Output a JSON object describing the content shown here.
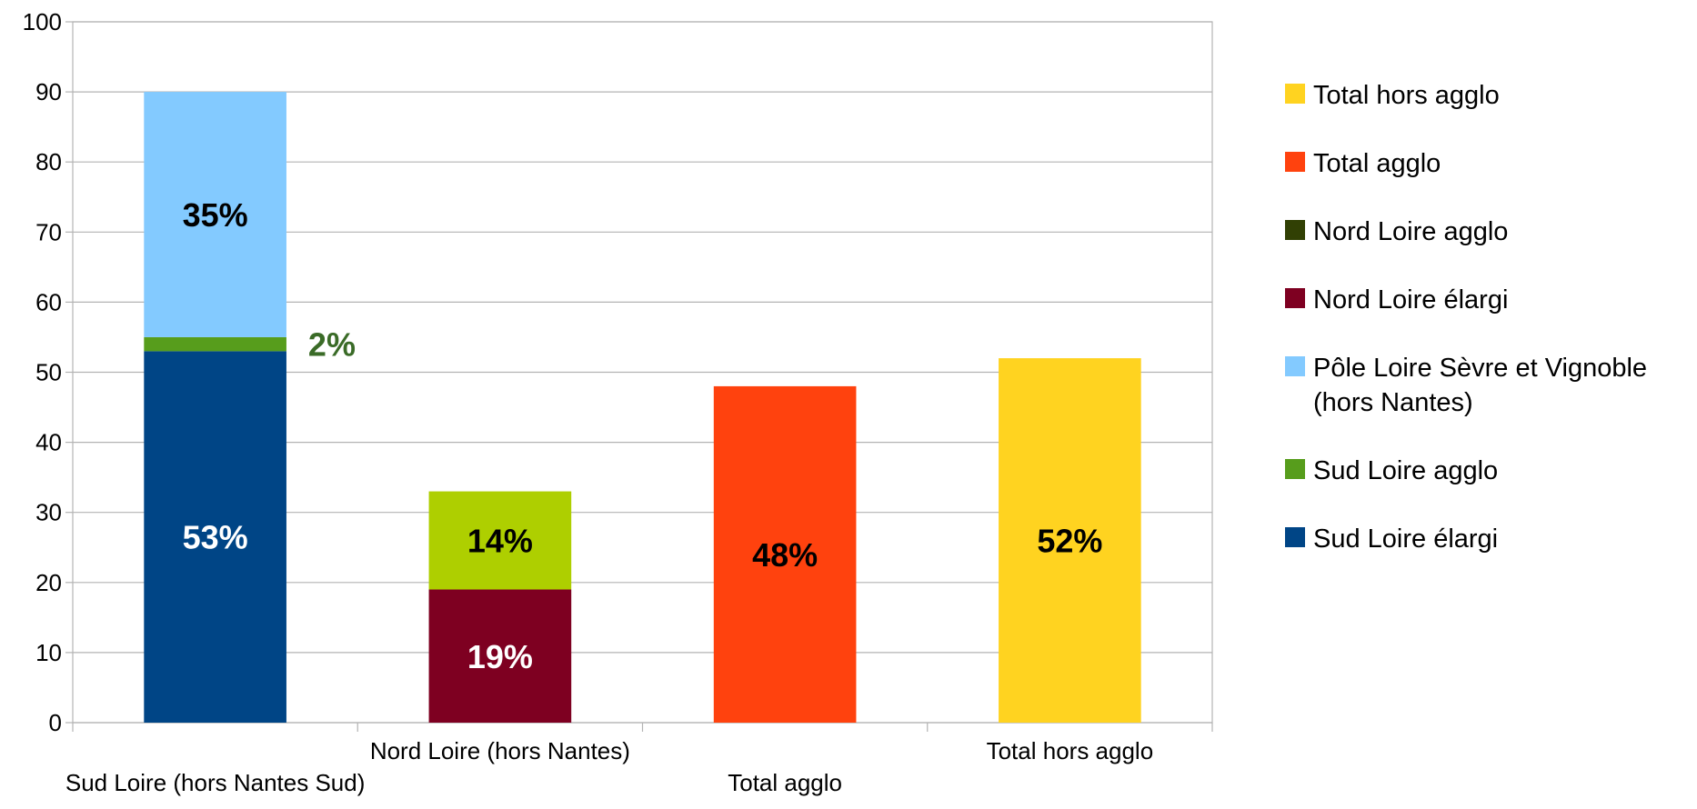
{
  "chart_data": {
    "type": "bar",
    "stacked": true,
    "ylim": [
      0,
      100
    ],
    "yticks": [
      0,
      10,
      20,
      30,
      40,
      50,
      60,
      70,
      80,
      90,
      100
    ],
    "grid": true,
    "legend_position": "right",
    "categories": [
      "Sud Loire (hors Nantes Sud)",
      "Nord Loire (hors Nantes)",
      "Total agglo",
      "Total hors agglo"
    ],
    "series": [
      {
        "name": "Sud Loire élargi",
        "color": "#004586",
        "values": [
          53,
          0,
          0,
          0
        ],
        "labels": [
          "53%",
          "",
          "",
          ""
        ],
        "label_color": "#ffffff"
      },
      {
        "name": "Sud Loire agglo",
        "color": "#579d1c",
        "values": [
          2,
          0,
          0,
          0
        ],
        "labels": [
          "2%",
          "",
          "",
          ""
        ],
        "label_color": "#3a6b27",
        "label_outside": true
      },
      {
        "name": "Pôle Loire Sèvre et Vignoble (hors Nantes)",
        "color": "#83caff",
        "values": [
          35,
          0,
          0,
          0
        ],
        "labels": [
          "35%",
          "",
          "",
          ""
        ],
        "label_color": "#000000"
      },
      {
        "name": "Nord Loire élargi",
        "color": "#7e0021",
        "values": [
          0,
          19,
          0,
          0
        ],
        "labels": [
          "",
          "19%",
          "",
          ""
        ],
        "label_color": "#ffffff"
      },
      {
        "name": "Nord Loire agglo",
        "color": "#314004",
        "values": [
          0,
          0,
          0,
          0
        ],
        "labels": [
          "",
          "",
          "",
          ""
        ],
        "label_color": "#000000"
      },
      {
        "name": "",
        "color": "#aecf00",
        "values": [
          0,
          14,
          0,
          0
        ],
        "labels": [
          "",
          "14%",
          "",
          ""
        ],
        "label_color": "#000000"
      },
      {
        "name": "Total agglo",
        "color": "#ff420e",
        "values": [
          0,
          0,
          48,
          0
        ],
        "labels": [
          "",
          "",
          "48%",
          ""
        ],
        "label_color": "#000000"
      },
      {
        "name": "Total hors agglo",
        "color": "#ffd320",
        "values": [
          0,
          0,
          0,
          52
        ],
        "labels": [
          "",
          "",
          "",
          "52%"
        ],
        "label_color": "#000000"
      }
    ],
    "legend": [
      {
        "label": "Total hors agglo",
        "color": "#ffd320"
      },
      {
        "label": "Total agglo",
        "color": "#ff420e"
      },
      {
        "label": "Nord Loire agglo",
        "color": "#314004"
      },
      {
        "label": "Nord Loire élargi",
        "color": "#7e0021"
      },
      {
        "label": "Pôle Loire Sèvre et Vignoble",
        "label_line2": "(hors Nantes)",
        "color": "#83caff"
      },
      {
        "label": "Sud Loire agglo",
        "color": "#579d1c"
      },
      {
        "label": "Sud Loire élargi",
        "color": "#004586"
      }
    ]
  }
}
